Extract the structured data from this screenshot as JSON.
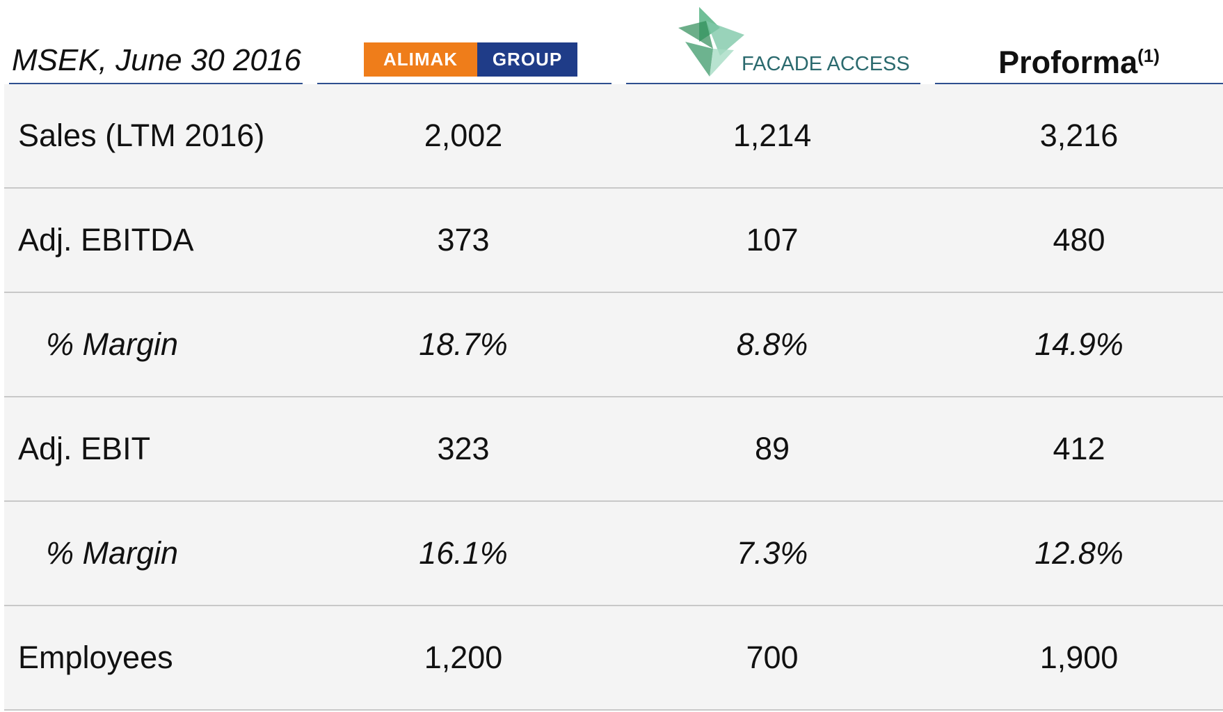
{
  "header": {
    "unit_label": "MSEK, June 30 2016",
    "alimak": {
      "part1": "ALIMAK",
      "part2": "GROUP"
    },
    "facade": "FACADE ACCESS",
    "proforma": "Proforma",
    "proforma_note": "(1)"
  },
  "table": {
    "rows": [
      [
        "Sales (LTM 2016)",
        "2,002",
        "1,214",
        "3,216"
      ],
      [
        "Adj. EBITDA",
        "373",
        "107",
        "480"
      ],
      [
        "% Margin",
        "18.7%",
        "8.8%",
        "14.9%"
      ],
      [
        "Adj. EBIT",
        "323",
        "89",
        "412"
      ],
      [
        "% Margin",
        "16.1%",
        "7.3%",
        "12.8%"
      ],
      [
        "Employees",
        "1,200",
        "700",
        "1,900"
      ]
    ]
  }
}
